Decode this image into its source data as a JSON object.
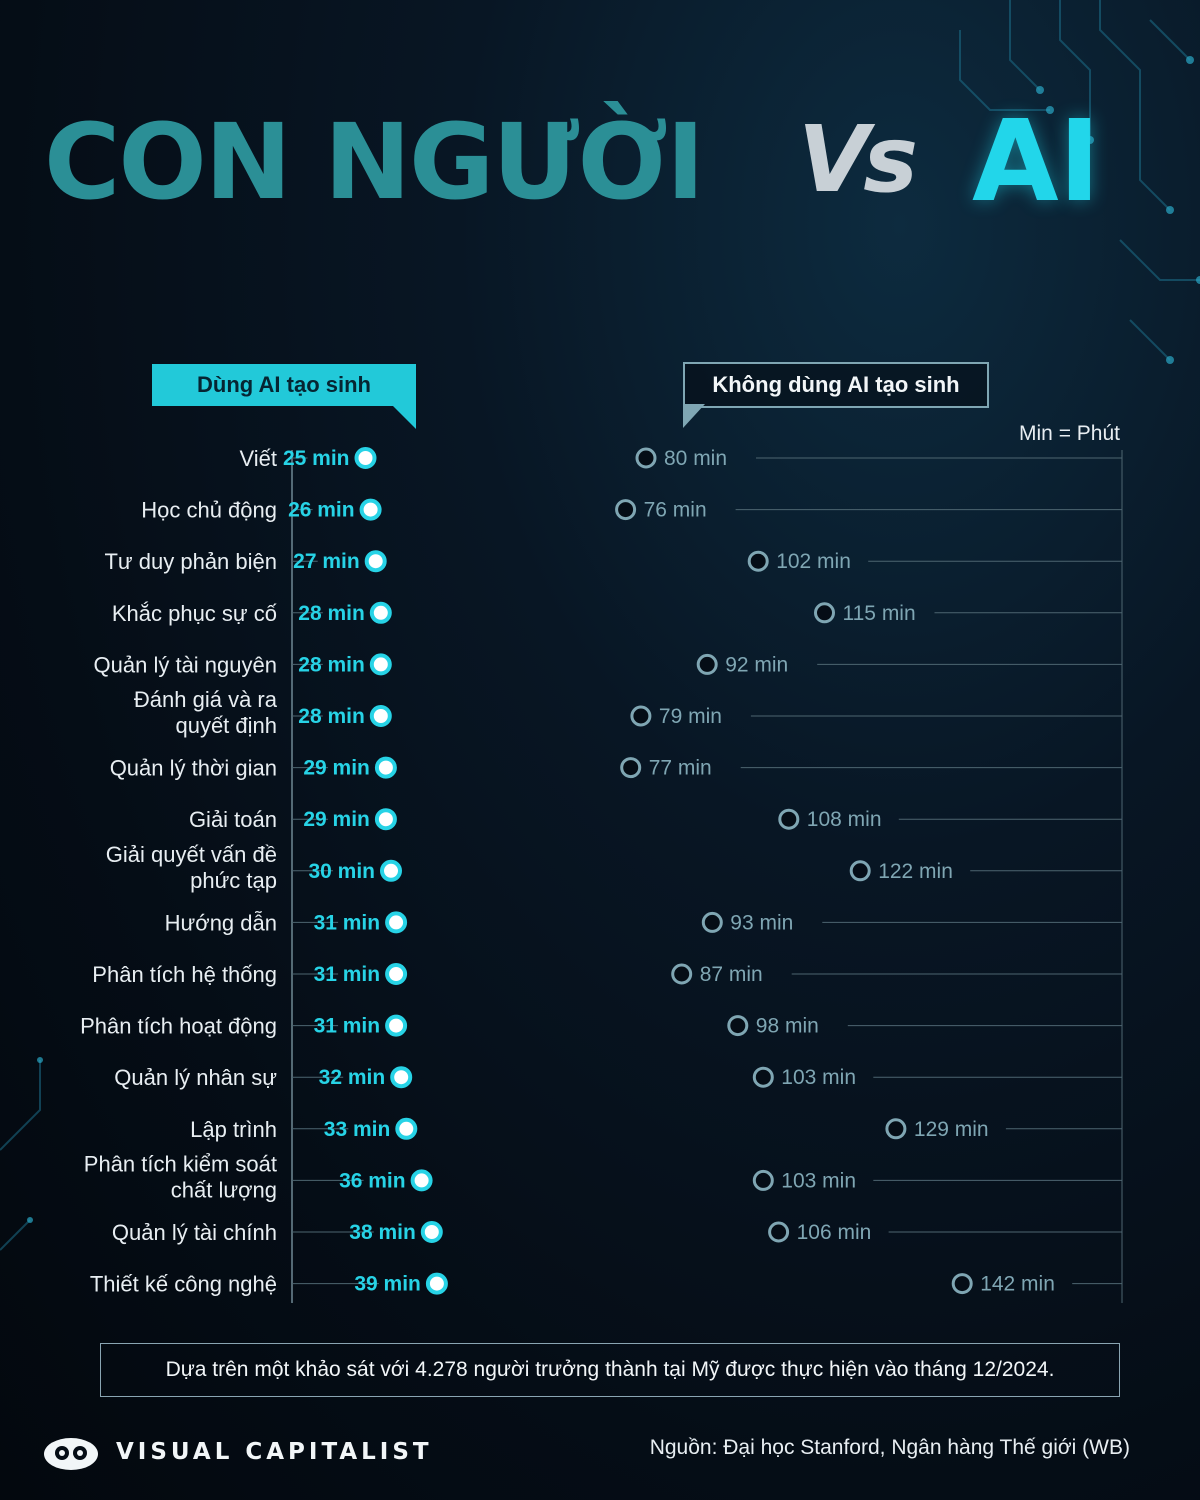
{
  "header": {
    "title_left": "CON NGƯỜI",
    "title_vs": "Vs",
    "title_right": "AI"
  },
  "legend": {
    "with_ai": "Dùng AI tạo sinh",
    "without_ai": "Không dùng AI tạo sinh",
    "unit_note": "Min = Phút"
  },
  "colors": {
    "with_ai": "#27d3e6",
    "without_ai": "#7fa6b3",
    "title_left": "#2b8f96",
    "title_right": "#22d6ea"
  },
  "chart_data": {
    "type": "dumbbell",
    "unit": "min",
    "categories": [
      "Viết",
      "Học chủ động",
      "Tư duy phản biện",
      "Khắc phục sự cố",
      "Quản lý tài nguyên",
      "Đánh giá và ra quyết định",
      "Quản lý thời gian",
      "Giải toán",
      "Giải quyết vấn đề phức tạp",
      "Hướng dẫn",
      "Phân tích hệ thống",
      "Phân tích hoạt động",
      "Quản lý nhân sự",
      "Lập trình",
      "Phân tích kiểm soát chất lượng",
      "Quản lý tài chính",
      "Thiết kế công nghệ"
    ],
    "series": [
      {
        "name": "Dùng AI tạo sinh",
        "values": [
          25,
          26,
          27,
          28,
          28,
          28,
          29,
          29,
          30,
          31,
          31,
          31,
          32,
          33,
          36,
          38,
          39
        ]
      },
      {
        "name": "Không dùng AI tạo sinh",
        "values": [
          80,
          76,
          102,
          115,
          92,
          79,
          77,
          108,
          122,
          93,
          87,
          98,
          103,
          129,
          103,
          106,
          142
        ]
      }
    ]
  },
  "footer": {
    "note": "Dựa trên một khảo sát với 4.278 người trưởng thành tại Mỹ được thực hiện vào tháng 12/2024.",
    "brand": "VISUAL CAPITALIST",
    "source": "Nguồn: Đại học Stanford, Ngân hàng Thế giới (WB)"
  }
}
